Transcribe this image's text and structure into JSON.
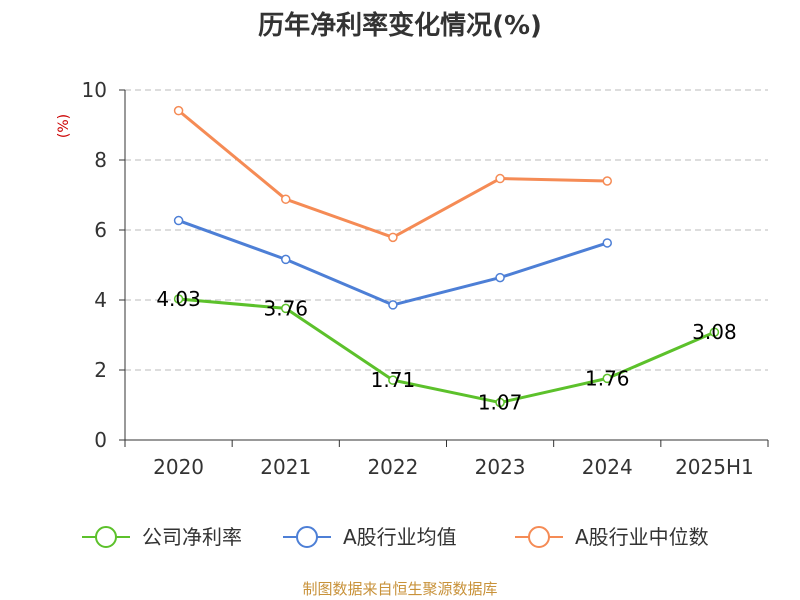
{
  "chart_data": {
    "type": "line",
    "title": "历年净利率变化情况(%)",
    "ylabel": "(%)",
    "xlabel": "",
    "categories": [
      "2020",
      "2021",
      "2022",
      "2023",
      "2024",
      "2025H1"
    ],
    "ylim": [
      0,
      10
    ],
    "yticks": [
      "0",
      "2",
      "4",
      "6",
      "8",
      "10"
    ],
    "grid": true,
    "legend_position": "bottom",
    "series": [
      {
        "name": "公司净利率",
        "color": "#5cc12b",
        "values": [
          4.03,
          3.76,
          1.71,
          1.07,
          1.76,
          3.08
        ],
        "labels": [
          "4.03",
          "3.76",
          "1.71",
          "1.07",
          "1.76",
          "3.08"
        ]
      },
      {
        "name": "A股行业均值",
        "color": "#4d7fd6",
        "values": [
          6.27,
          5.16,
          3.86,
          4.64,
          5.63,
          null
        ]
      },
      {
        "name": "A股行业中位数",
        "color": "#f58b55",
        "values": [
          9.41,
          6.88,
          5.79,
          7.47,
          7.4,
          null
        ]
      }
    ]
  },
  "source": "制图数据来自恒生聚源数据库"
}
